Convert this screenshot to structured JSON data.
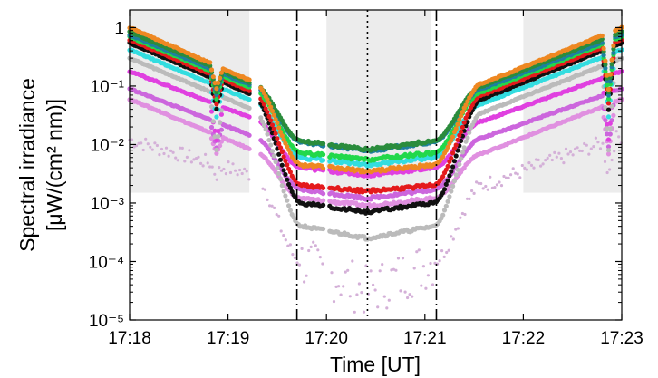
{
  "chart_data": {
    "type": "scatter",
    "title": "",
    "xlabel": "Time [UT]",
    "ylabel_line1": "Spectral irradiance",
    "ylabel_line2": "[μW/(cm² nm)]",
    "y_scale": "log",
    "xlim": [
      "17:18",
      "17:23"
    ],
    "ylim": [
      1e-05,
      2
    ],
    "x_ticks": [
      "17:18",
      "17:19",
      "17:20",
      "17:21",
      "17:22",
      "17:23"
    ],
    "y_ticks": [
      {
        "value": 1,
        "label": "1"
      },
      {
        "value": 0.1,
        "label": "10⁻¹"
      },
      {
        "value": 0.01,
        "label": "10⁻²"
      },
      {
        "value": 0.001,
        "label": "10⁻³"
      },
      {
        "value": 0.0001,
        "label": "10⁻⁴"
      },
      {
        "value": 1e-05,
        "label": "10⁻⁵"
      }
    ],
    "shaded_regions": [
      {
        "x_start": "17:18",
        "x_end": "17:19:13",
        "y_bottom": 0.0015
      },
      {
        "x_start": "17:20",
        "x_end": "17:21:04",
        "y_bottom": 0.0015
      },
      {
        "x_start": "17:22",
        "x_end": "17:23",
        "y_bottom": 0.0015
      }
    ],
    "vertical_lines": [
      {
        "x": "17:19:42",
        "style": "dash-dot"
      },
      {
        "x": "17:20:25",
        "style": "dotted"
      },
      {
        "x": "17:21:07",
        "style": "dash-dot"
      }
    ],
    "series": [
      {
        "color": "#ee8822",
        "values_at_knots": [
          1.0,
          0.12,
          0.0045,
          0.0035,
          0.0045,
          0.11,
          1.0
        ],
        "dip_min": 0.09
      },
      {
        "color": "#2a8c3c",
        "values_at_knots": [
          0.85,
          0.11,
          0.0115,
          0.0082,
          0.0115,
          0.1,
          0.85
        ],
        "dip_min": 0.08
      },
      {
        "color": "#1e7fa0",
        "values_at_knots": [
          0.75,
          0.1,
          0.011,
          0.0078,
          0.011,
          0.09,
          0.75
        ],
        "dip_min": 0.07
      },
      {
        "color": "#22d84a",
        "values_at_knots": [
          0.7,
          0.09,
          0.0072,
          0.0055,
          0.0072,
          0.08,
          0.7
        ],
        "dip_min": 0.06
      },
      {
        "color": "#e41a1c",
        "values_at_knots": [
          0.62,
          0.08,
          0.002,
          0.0016,
          0.002,
          0.07,
          0.62
        ],
        "dip_min": 0.05
      },
      {
        "color": "#111111",
        "values_at_knots": [
          0.55,
          0.07,
          0.001,
          0.0007,
          0.001,
          0.06,
          0.55
        ],
        "dip_min": 0.04
      },
      {
        "color": "#33dde0",
        "values_at_knots": [
          0.42,
          0.055,
          0.006,
          0.0045,
          0.006,
          0.05,
          0.42
        ],
        "dip_min": 0.03
      },
      {
        "color": "#bbbbbb",
        "values_at_knots": [
          0.3,
          0.04,
          0.0004,
          0.00025,
          0.0004,
          0.035,
          0.3
        ],
        "dip_min": 0.008
      },
      {
        "color": "#e040e0",
        "values_at_knots": [
          0.18,
          0.028,
          0.004,
          0.003,
          0.004,
          0.025,
          0.18
        ],
        "dip_min": 0.012
      },
      {
        "color": "#cc66dd",
        "values_at_knots": [
          0.09,
          0.014,
          0.0017,
          0.0012,
          0.0017,
          0.013,
          0.09
        ],
        "dip_min": 0.009
      },
      {
        "color": "#e090e0",
        "values_at_knots": [
          0.06,
          0.008,
          0.0012,
          0.0009,
          0.0012,
          0.007,
          0.06
        ],
        "dip_min": 0.007
      },
      {
        "color": "#d4b0d8",
        "values_at_knots": [
          0.012,
          0.003,
          0.0001,
          3e-05,
          0.0001,
          0.002,
          0.014
        ],
        "dip_min": 0.003
      }
    ],
    "knot_times": [
      "17:18",
      "17:19:15",
      "17:19:45",
      "17:20:25",
      "17:21:05",
      "17:21:35",
      "17:23"
    ],
    "dip_times": [
      "17:18:53",
      "17:22:52"
    ],
    "grid": false,
    "legend": "none"
  }
}
